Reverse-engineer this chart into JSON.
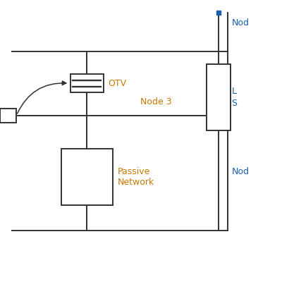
{
  "bg_color": "#ffffff",
  "line_color": "#333333",
  "label_color_orange": "#c87800",
  "label_color_blue": "#1a5fa8",
  "figsize": [
    4.0,
    4.0
  ],
  "dpi": 100,
  "labels": {
    "node3": "Node 3",
    "otv": "OTV",
    "passive_network": "Passive\nNetwork",
    "node_top": "Nod",
    "node_bottom": "Nod",
    "ls": "L\nS"
  },
  "lw": 1.4
}
